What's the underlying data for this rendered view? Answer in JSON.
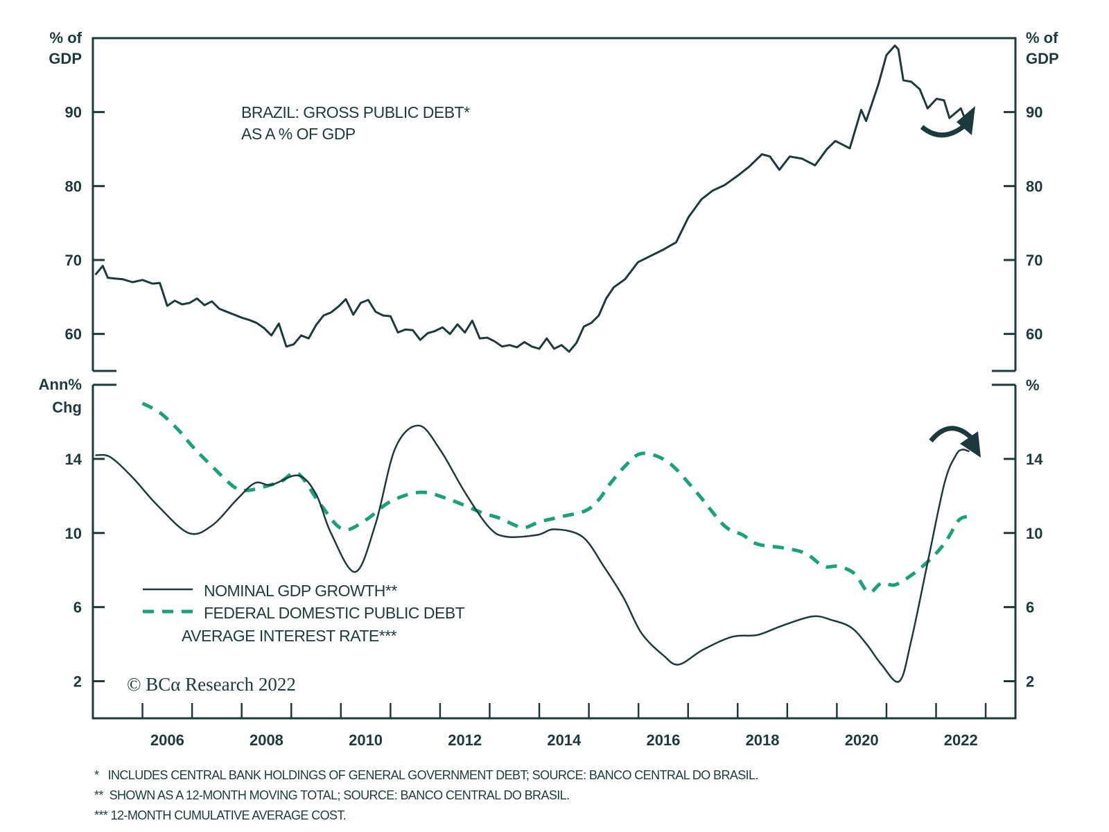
{
  "chart_data": [
    {
      "type": "line",
      "title": "BRAZIL: GROSS PUBLIC DEBT* AS A % OF GDP",
      "title_lines": [
        "BRAZIL: GROSS PUBLIC DEBT*",
        "AS A % OF GDP"
      ],
      "ylabel_left": [
        "% of",
        "GDP"
      ],
      "ylabel_right": [
        "% of",
        "GDP"
      ],
      "ylim": [
        55,
        100
      ],
      "yticks": [
        60,
        70,
        80,
        90
      ],
      "xlim": [
        2005.0,
        2023.6
      ],
      "grid": false,
      "annotation": "arrow-up (debt expected to rise)",
      "series": [
        {
          "name": "Gross public debt",
          "color": "#1c3a3e",
          "x": [
            2005.05,
            2005.2,
            2005.3,
            2005.45,
            2005.6,
            2005.8,
            2006.0,
            2006.2,
            2006.35,
            2006.5,
            2006.65,
            2006.8,
            2006.95,
            2007.1,
            2007.25,
            2007.4,
            2007.55,
            2007.7,
            2007.85,
            2008.0,
            2008.15,
            2008.3,
            2008.45,
            2008.6,
            2008.75,
            2008.9,
            2009.05,
            2009.2,
            2009.35,
            2009.5,
            2009.65,
            2009.8,
            2009.95,
            2010.1,
            2010.25,
            2010.4,
            2010.55,
            2010.7,
            2010.85,
            2011.0,
            2011.15,
            2011.3,
            2011.45,
            2011.6,
            2011.75,
            2011.9,
            2012.05,
            2012.2,
            2012.35,
            2012.5,
            2012.65,
            2012.8,
            2012.95,
            2013.1,
            2013.25,
            2013.4,
            2013.55,
            2013.7,
            2013.85,
            2014.0,
            2014.15,
            2014.3,
            2014.45,
            2014.6,
            2014.75,
            2014.9,
            2015.05,
            2015.2,
            2015.35,
            2015.5,
            2015.73,
            2015.99,
            2016.2,
            2016.5,
            2016.76,
            2017.01,
            2017.27,
            2017.5,
            2017.73,
            2018.0,
            2018.23,
            2018.49,
            2018.65,
            2018.84,
            2019.05,
            2019.3,
            2019.56,
            2019.8,
            2019.97,
            2020.26,
            2020.49,
            2020.59,
            2020.84,
            2021.0,
            2021.17,
            2021.24,
            2021.34,
            2021.5,
            2021.67,
            2021.83,
            2022.01,
            2022.16,
            2022.27,
            2022.5,
            2022.6
          ],
          "y": [
            68.0,
            69.2,
            67.6,
            67.5,
            67.4,
            67.0,
            67.3,
            66.8,
            66.9,
            63.8,
            64.5,
            64.0,
            64.2,
            64.8,
            63.9,
            64.4,
            63.4,
            63.0,
            62.6,
            62.2,
            61.9,
            61.5,
            60.8,
            59.8,
            61.4,
            58.3,
            58.6,
            59.8,
            59.4,
            61.2,
            62.5,
            62.9,
            63.7,
            64.7,
            62.6,
            64.2,
            64.6,
            63.0,
            62.5,
            62.4,
            60.2,
            60.6,
            60.5,
            59.2,
            60.1,
            60.4,
            60.9,
            60.0,
            61.3,
            60.2,
            61.8,
            59.4,
            59.5,
            59.0,
            58.3,
            58.5,
            58.2,
            58.9,
            58.3,
            58.0,
            59.4,
            58.0,
            58.5,
            57.6,
            58.8,
            61.0,
            61.5,
            62.5,
            64.8,
            66.3,
            67.4,
            69.7,
            70.4,
            71.4,
            72.4,
            75.8,
            78.2,
            79.4,
            80.1,
            81.4,
            82.6,
            84.3,
            84.0,
            82.2,
            84.0,
            83.7,
            82.8,
            85.0,
            86.1,
            85.1,
            90.3,
            88.8,
            93.8,
            97.7,
            99.0,
            98.5,
            94.3,
            94.1,
            93.1,
            90.5,
            91.8,
            91.6,
            89.2,
            90.5,
            88.8
          ]
        }
      ]
    },
    {
      "type": "line",
      "ylabel_left": [
        "Ann%",
        "Chg"
      ],
      "ylabel_right": [
        "%"
      ],
      "ylim": [
        0,
        18
      ],
      "yticks": [
        2,
        6,
        10,
        14
      ],
      "xlim": [
        2005.0,
        2023.6
      ],
      "xticks": [
        "2006",
        "2008",
        "2010",
        "2012",
        "2014",
        "2016",
        "2018",
        "2020",
        "2022"
      ],
      "grid": false,
      "legend_position": "bottom-left",
      "annotation": "arrow-down (GDP growth expected to fall)",
      "series": [
        {
          "name": "NOMINAL GDP GROWTH**",
          "style": "solid",
          "color": "#1c3a3e",
          "x": [
            2005.05,
            2005.35,
            2005.8,
            2006.3,
            2006.93,
            2007.4,
            2007.9,
            2008.27,
            2008.6,
            2009.14,
            2009.5,
            2009.8,
            2010.29,
            2010.7,
            2011.1,
            2011.57,
            2012.0,
            2012.5,
            2012.99,
            2013.34,
            2013.96,
            2014.31,
            2014.87,
            2015.3,
            2015.7,
            2016.06,
            2016.5,
            2016.81,
            2017.3,
            2017.89,
            2018.4,
            2018.9,
            2019.51,
            2019.9,
            2020.29,
            2020.6,
            2020.9,
            2021.26,
            2021.5,
            2021.83,
            2022.17,
            2022.4,
            2022.53,
            2022.67
          ],
          "y": [
            14.2,
            14.1,
            13.0,
            11.5,
            10.0,
            10.4,
            11.8,
            12.7,
            12.6,
            13.1,
            12.1,
            10.0,
            7.9,
            10.5,
            14.6,
            15.8,
            14.5,
            12.2,
            10.3,
            9.8,
            9.9,
            10.2,
            9.8,
            8.2,
            6.5,
            4.6,
            3.4,
            2.9,
            3.7,
            4.4,
            4.5,
            5.0,
            5.5,
            5.3,
            4.9,
            4.0,
            2.9,
            2.0,
            4.2,
            8.4,
            12.7,
            14.2,
            14.5,
            14.4
          ]
        },
        {
          "name": "FEDERAL DOMESTIC PUBLIC DEBT AVERAGE INTEREST RATE***",
          "style": "dashed",
          "color": "#1aa07a",
          "x": [
            2006.0,
            2006.35,
            2006.71,
            2007.0,
            2007.29,
            2007.84,
            2008.1,
            2008.46,
            2008.8,
            2009.14,
            2009.6,
            2010.04,
            2010.5,
            2011.0,
            2011.61,
            2012.2,
            2012.84,
            2013.2,
            2013.66,
            2014.0,
            2014.47,
            2014.93,
            2015.2,
            2015.44,
            2015.8,
            2016.1,
            2016.61,
            2017.17,
            2017.73,
            2018.1,
            2018.4,
            2018.91,
            2019.37,
            2019.73,
            2020.03,
            2020.36,
            2020.64,
            2020.9,
            2021.17,
            2021.54,
            2021.93,
            2022.21,
            2022.46,
            2022.67
          ],
          "y": [
            17.0,
            16.5,
            15.6,
            14.7,
            13.9,
            12.5,
            12.3,
            12.5,
            12.8,
            13.2,
            11.5,
            10.2,
            10.7,
            11.7,
            12.2,
            11.8,
            11.1,
            10.8,
            10.3,
            10.6,
            10.9,
            11.2,
            11.8,
            12.7,
            13.8,
            14.3,
            13.8,
            12.2,
            10.4,
            9.9,
            9.4,
            9.2,
            8.9,
            8.2,
            8.2,
            7.8,
            6.8,
            7.3,
            7.2,
            7.8,
            8.7,
            9.6,
            10.7,
            10.9
          ]
        }
      ]
    }
  ],
  "top_panel": {
    "title_line1": "BRAZIL: GROSS PUBLIC DEBT*",
    "title_line2": "AS A % OF GDP",
    "ylabel_left_1": "% of",
    "ylabel_left_2": "GDP",
    "ylabel_right_1": "% of",
    "ylabel_right_2": "GDP",
    "ticks": [
      "60",
      "70",
      "80",
      "90"
    ]
  },
  "bottom_panel": {
    "ylabel_left_1": "Ann%",
    "ylabel_left_2": "Chg",
    "ylabel_right_1": "%",
    "ticks": [
      "2",
      "6",
      "10",
      "14"
    ],
    "legend": {
      "item1": "NOMINAL GDP GROWTH**",
      "item2_line1": "FEDERAL DOMESTIC PUBLIC DEBT",
      "item2_line2": "AVERAGE INTEREST RATE***"
    }
  },
  "x_axis_labels": [
    "2006",
    "2008",
    "2010",
    "2012",
    "2014",
    "2016",
    "2018",
    "2020",
    "2022"
  ],
  "copyright": "© BCα Research 2022",
  "footnotes": [
    "*   INCLUDES CENTRAL BANK HOLDINGS OF GENERAL GOVERNMENT DEBT; SOURCE: BANCO CENTRAL DO BRASIL.",
    "**  SHOWN AS A 12-MONTH MOVING TOTAL; SOURCE: BANCO CENTRAL DO BRASIL.",
    "*** 12-MONTH CUMULATIVE AVERAGE COST."
  ],
  "colors": {
    "ink": "#1c3a3e",
    "green": "#1aa07a"
  }
}
